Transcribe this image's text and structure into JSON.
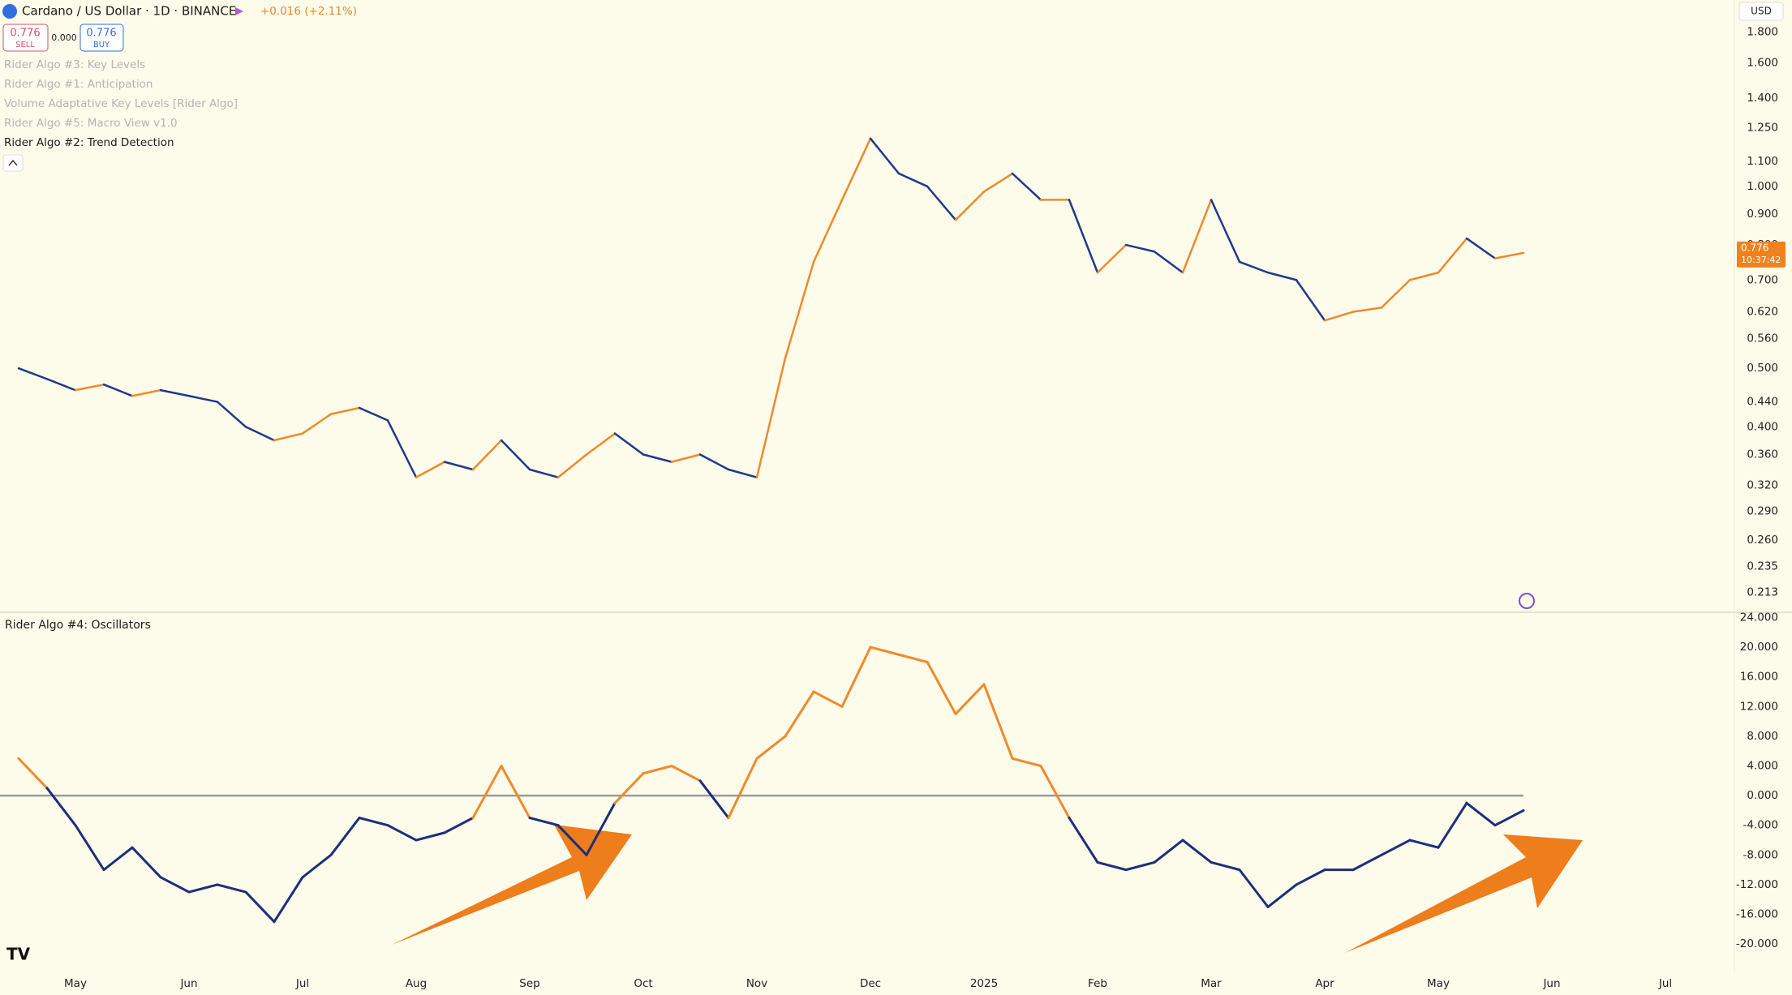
{
  "header": {
    "symbol": "Cardano / US Dollar · 1D · BINANCE",
    "change": "+0.016 (+2.11%)",
    "sell_price": "0.776",
    "sell_label": "SELL",
    "spread": "0.000",
    "buy_price": "0.776",
    "buy_label": "BUY",
    "indicators": [
      "Rider Algo #3: Key Levels",
      "Rider Algo #1: Anticipation",
      "Volume Adaptative Key Levels [Rider Algo]",
      "Rider Algo #5: Macro View v1.0",
      "Rider Algo #2: Trend Detection"
    ],
    "currency": "USD"
  },
  "chart_data": [
    {
      "type": "line",
      "log_scale": true,
      "up_color": "#ef8a2c",
      "down_color": "#1f3a8a",
      "categories": [
        null,
        null,
        "May",
        null,
        null,
        null,
        "Jun",
        null,
        null,
        null,
        "Jul",
        null,
        null,
        null,
        "Aug",
        null,
        null,
        null,
        "Sep",
        null,
        null,
        null,
        "Oct",
        null,
        null,
        null,
        "Nov",
        null,
        null,
        null,
        "Dec",
        null,
        null,
        null,
        "2025",
        null,
        null,
        null,
        "Feb",
        null,
        null,
        null,
        "Mar",
        null,
        null,
        null,
        "Apr",
        null,
        null,
        null,
        "May",
        null,
        null,
        null,
        "Jun",
        null,
        null,
        null,
        "Jul",
        null
      ],
      "values": [
        0.5,
        0.48,
        0.46,
        0.47,
        0.45,
        0.46,
        0.45,
        0.44,
        0.4,
        0.38,
        0.39,
        0.42,
        0.43,
        0.41,
        0.33,
        0.35,
        0.34,
        0.38,
        0.34,
        0.33,
        0.36,
        0.39,
        0.36,
        0.35,
        0.36,
        0.34,
        0.33,
        0.52,
        0.75,
        0.95,
        1.2,
        1.05,
        1,
        0.88,
        0.98,
        1.05,
        0.95,
        0.95,
        0.72,
        0.8,
        0.78,
        0.72,
        0.95,
        0.75,
        0.72,
        0.7,
        0.6,
        0.62,
        0.63,
        0.7,
        0.72,
        0.82,
        0.76,
        0.776,
        null,
        null,
        null,
        null,
        null,
        null
      ],
      "ylim": [
        0.198,
        2.034
      ],
      "yticks": [
        {
          "value": 1.8,
          "label": "1.800"
        },
        {
          "value": 1.6,
          "label": "1.600"
        },
        {
          "value": 1.4,
          "label": "1.400"
        },
        {
          "value": 1.25,
          "label": "1.250"
        },
        {
          "value": 1.1,
          "label": "1.100"
        },
        {
          "value": 1,
          "label": "1.000"
        },
        {
          "value": 0.9,
          "label": "0.900"
        },
        {
          "value": 0.8,
          "label": "0.800"
        },
        {
          "value": 0.7,
          "label": "0.700"
        },
        {
          "value": 0.62,
          "label": "0.620"
        },
        {
          "value": 0.56,
          "label": "0.560"
        },
        {
          "value": 0.5,
          "label": "0.500"
        },
        {
          "value": 0.44,
          "label": "0.440"
        },
        {
          "value": 0.4,
          "label": "0.400"
        },
        {
          "value": 0.36,
          "label": "0.360"
        },
        {
          "value": 0.32,
          "label": "0.320"
        },
        {
          "value": 0.29,
          "label": "0.290"
        },
        {
          "value": 0.26,
          "label": "0.260"
        },
        {
          "value": 0.235,
          "label": "0.235"
        },
        {
          "value": 0.213,
          "label": "0.213"
        }
      ],
      "countdown": "10:37:42",
      "price_tag_color": "#f0821e"
    },
    {
      "type": "line",
      "title": "Rider Algo #4: Oscillators",
      "color": "#1c2f7c",
      "positive_color": "#ef8a2c",
      "reference_line": 0,
      "categories": [
        null,
        null,
        "May",
        null,
        null,
        null,
        "Jun",
        null,
        null,
        null,
        "Jul",
        null,
        null,
        null,
        "Aug",
        null,
        null,
        null,
        "Sep",
        null,
        null,
        null,
        "Oct",
        null,
        null,
        null,
        "Nov",
        null,
        null,
        null,
        "Dec",
        null,
        null,
        null,
        "2025",
        null,
        null,
        null,
        "Feb",
        null,
        null,
        null,
        "Mar",
        null,
        null,
        null,
        "Apr",
        null,
        null,
        null,
        "May",
        null,
        null,
        null,
        "Jun",
        null,
        null,
        null,
        "Jul",
        null
      ],
      "values": [
        5,
        1,
        -4,
        -10,
        -7,
        -11,
        -13,
        -12,
        -13,
        -17,
        -11,
        -8,
        -3,
        -4,
        -6,
        -5,
        -3,
        4,
        -3,
        -4,
        -8,
        -1,
        3,
        4,
        2,
        -3,
        5,
        8,
        14,
        12,
        20,
        19,
        18,
        11,
        15,
        5,
        4,
        -3,
        -9,
        -10,
        -9,
        -6,
        -9,
        -10,
        -15,
        -12,
        -10,
        -10,
        -8,
        -6,
        -7,
        -1,
        -4,
        -2,
        null,
        null,
        null,
        null,
        null,
        null
      ],
      "ylim": [
        -23.7,
        24.6
      ],
      "yticks": [
        {
          "value": 24,
          "label": "24.000"
        },
        {
          "value": 20,
          "label": "20.000"
        },
        {
          "value": 16,
          "label": "16.000"
        },
        {
          "value": 12,
          "label": "12.000"
        },
        {
          "value": 8,
          "label": "8.000"
        },
        {
          "value": 4,
          "label": "4.000"
        },
        {
          "value": 0,
          "label": "0.000"
        },
        {
          "value": -4,
          "label": "-4.000"
        },
        {
          "value": -8,
          "label": "-8.000"
        },
        {
          "value": -12,
          "label": "-12.000"
        },
        {
          "value": -16,
          "label": "-16.000"
        },
        {
          "value": -20,
          "label": "-20.000"
        }
      ]
    }
  ]
}
